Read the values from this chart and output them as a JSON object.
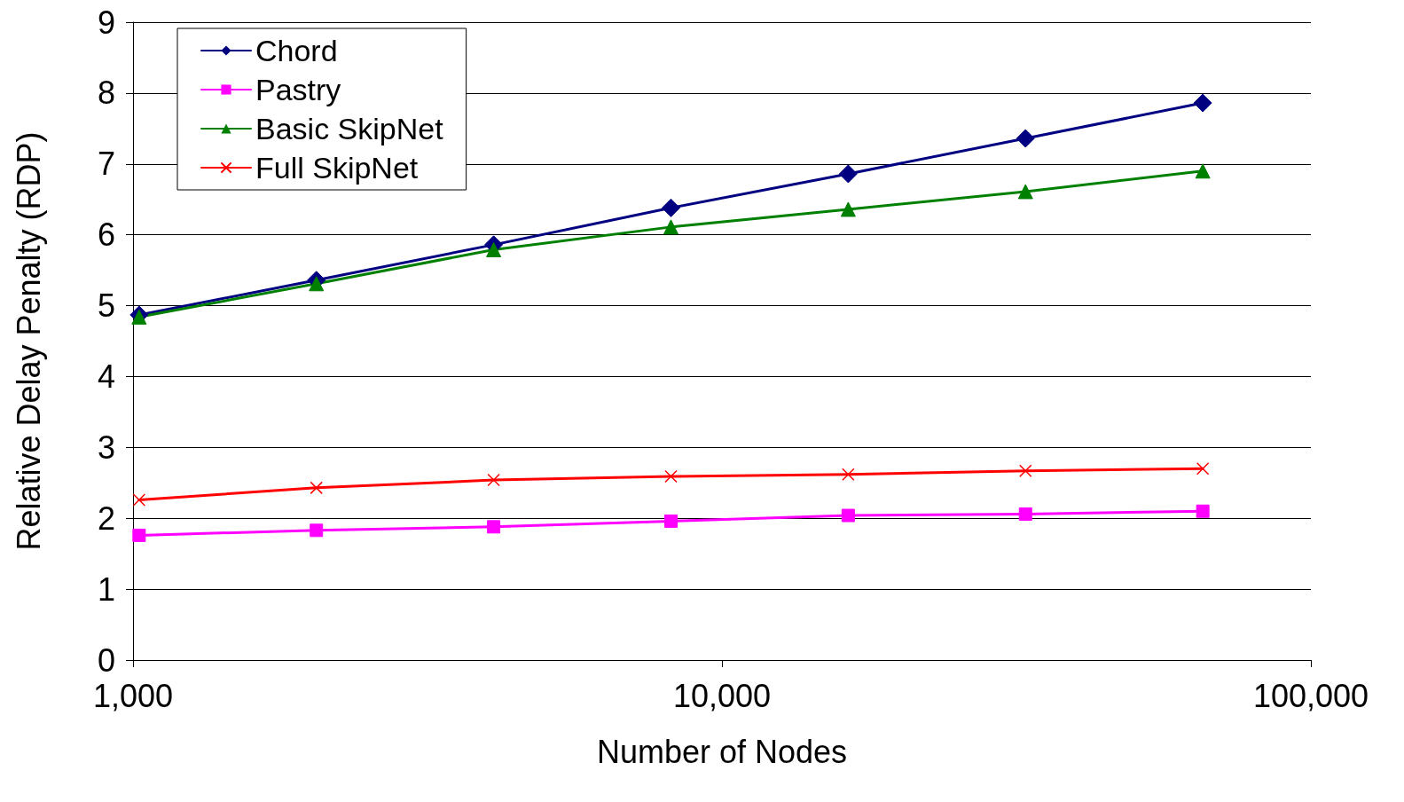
{
  "chart_data": {
    "type": "line",
    "xlabel": "Number of Nodes",
    "ylabel": "Relative Delay Penalty (RDP)",
    "x": [
      1024,
      2048,
      4096,
      8192,
      16384,
      32768,
      65536
    ],
    "series": [
      {
        "name": "Chord",
        "color": "#000080",
        "marker": "diamond",
        "values": [
          4.87,
          5.36,
          5.86,
          6.38,
          6.86,
          7.36,
          7.86
        ]
      },
      {
        "name": "Pastry",
        "color": "#ff00ff",
        "marker": "square",
        "values": [
          1.76,
          1.83,
          1.88,
          1.96,
          2.04,
          2.06,
          2.1
        ]
      },
      {
        "name": "Basic SkipNet",
        "color": "#008000",
        "marker": "triangle",
        "values": [
          4.84,
          5.31,
          5.79,
          6.11,
          6.36,
          6.61,
          6.9
        ]
      },
      {
        "name": "Full SkipNet",
        "color": "#ff0000",
        "marker": "cross",
        "values": [
          2.26,
          2.43,
          2.54,
          2.59,
          2.62,
          2.67,
          2.7
        ]
      }
    ],
    "log": "x",
    "xlim": [
      1000,
      100000
    ],
    "xticks": [
      {
        "value": 1000,
        "label": "1,000"
      },
      {
        "value": 10000,
        "label": "10,000"
      },
      {
        "value": 100000,
        "label": "100,000"
      }
    ],
    "ylim": [
      0,
      9
    ],
    "yticks": [
      0,
      1,
      2,
      3,
      4,
      5,
      6,
      7,
      8,
      9
    ],
    "grid": "y",
    "legend": "top left"
  }
}
